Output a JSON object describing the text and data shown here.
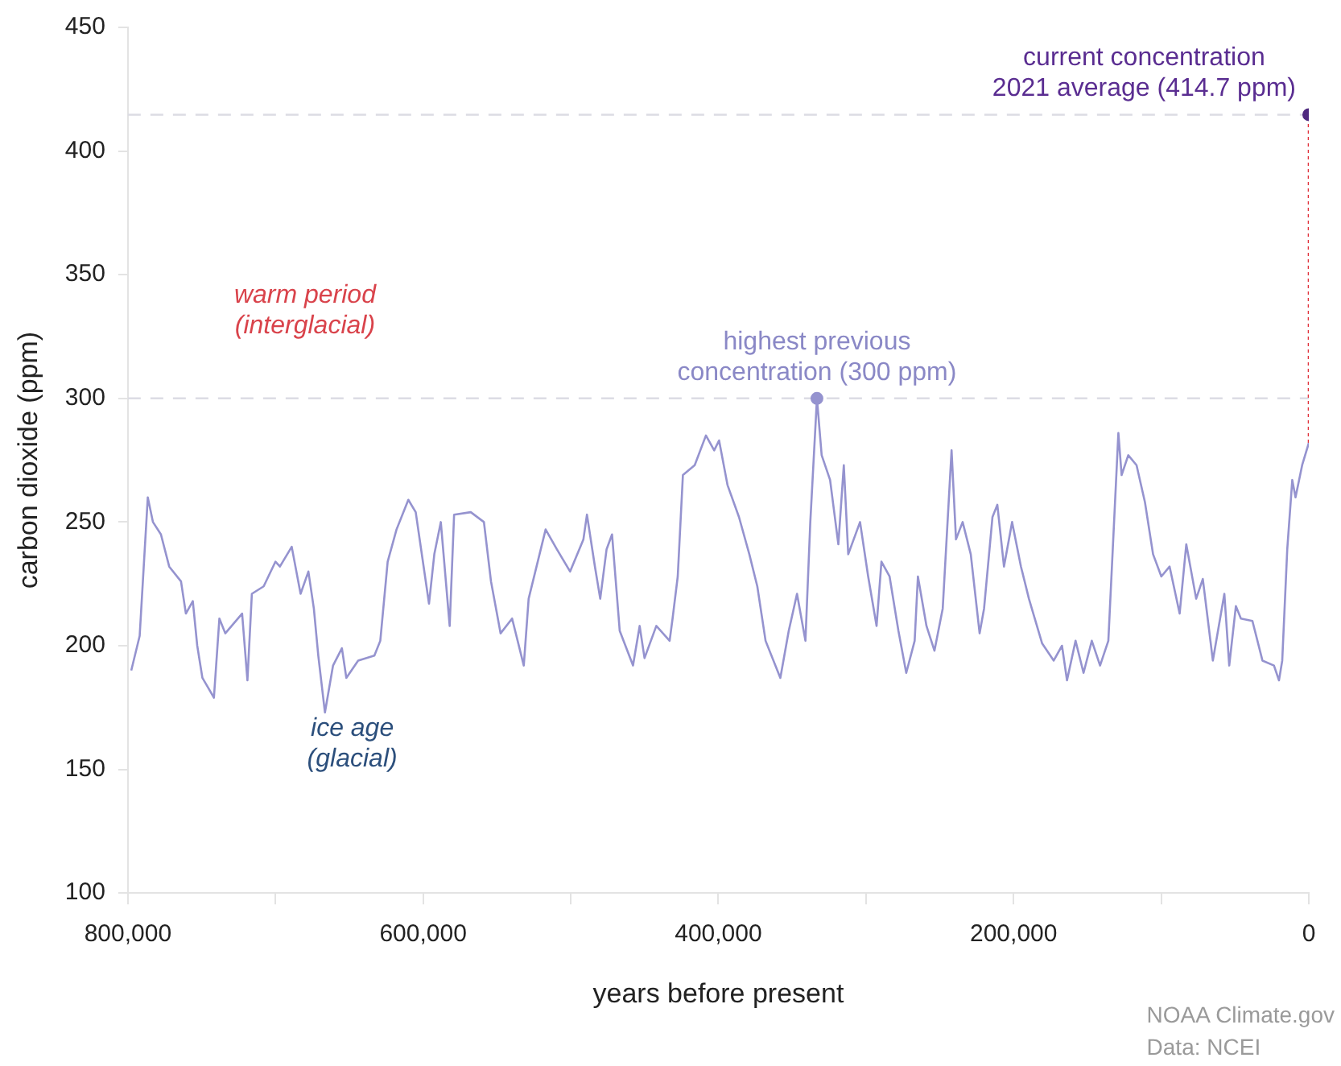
{
  "chart_data": {
    "type": "line",
    "xlabel": "years before present",
    "ylabel": "carbon dioxide (ppm)",
    "xlim": [
      800000,
      0
    ],
    "ylim": [
      100,
      450
    ],
    "xticks": [
      {
        "value": 800000,
        "label": "800,000"
      },
      {
        "value": 700000,
        "label": null
      },
      {
        "value": 600000,
        "label": "600,000"
      },
      {
        "value": 500000,
        "label": null
      },
      {
        "value": 400000,
        "label": "400,000"
      },
      {
        "value": 300000,
        "label": null
      },
      {
        "value": 200000,
        "label": "200,000"
      },
      {
        "value": 100000,
        "label": null
      },
      0
    ],
    "yticks": [
      100,
      150,
      200,
      250,
      300,
      350,
      400,
      450
    ],
    "grid": false,
    "legend": false,
    "ref_lines": [
      {
        "axis": "y",
        "value": 300,
        "color": "#dcdce4",
        "line_style": "dashed"
      },
      {
        "axis": "y",
        "value": 414.7,
        "color": "#dcdce4",
        "line_style": "dashed"
      }
    ],
    "series": [
      {
        "color": "#9593cf",
        "marker": "none",
        "line_style": "solid",
        "x": [
          797700,
          792000,
          786500,
          783000,
          777600,
          772000,
          764000,
          760700,
          756000,
          753000,
          749500,
          741700,
          738000,
          734000,
          722600,
          719000,
          716000,
          708000,
          700000,
          697000,
          689000,
          683000,
          677700,
          674000,
          671000,
          666500,
          661000,
          655000,
          652000,
          644000,
          633000,
          629000,
          624000,
          618000,
          610000,
          605000,
          596000,
          592400,
          588000,
          582000,
          579000,
          567700,
          558800,
          554000,
          547500,
          539700,
          531800,
          528500,
          517000,
          509400,
          500400,
          491400,
          489000,
          483600,
          480000,
          475700,
          472000,
          466800,
          457800,
          453300,
          450000,
          442000,
          433000,
          431000,
          427500,
          424000,
          416000,
          408400,
          402800,
          399500,
          393800,
          386000,
          379000,
          373600,
          368000,
          358000,
          352300,
          346700,
          341000,
          337700,
          333200,
          330000,
          324300,
          318700,
          315000,
          312000,
          304000,
          298500,
          292800,
          289500,
          284000,
          278000,
          272700,
          267000,
          264800,
          259000,
          253600,
          248000,
          242000,
          239000,
          234500,
          229000,
          223000,
          220000,
          214300,
          211000,
          206500,
          201000,
          195000,
          189600,
          180700,
          172800,
          167200,
          163800,
          158000,
          152600,
          147000,
          141400,
          135800,
          129000,
          126800,
          122300,
          116700,
          111000,
          105500,
          99900,
          94300,
          87500,
          83000,
          76300,
          71800,
          65000,
          57200,
          53900,
          49400,
          46000,
          38200,
          31400,
          23600,
          20200,
          18000,
          14600,
          11200,
          9000,
          4500,
          0
        ],
        "values": [
          190,
          204,
          260,
          250,
          245,
          232,
          226,
          213,
          218,
          200,
          187,
          179,
          211,
          205,
          213,
          186,
          221,
          224,
          234,
          232,
          240,
          221,
          230,
          215,
          196,
          173,
          192,
          199,
          187,
          194,
          196,
          202,
          234,
          247,
          259,
          254,
          217,
          237,
          250,
          208,
          253,
          254,
          250,
          226,
          205,
          211,
          192,
          219,
          247,
          239,
          230,
          243,
          253,
          232,
          219,
          239,
          245,
          206,
          192,
          208,
          195,
          208,
          202,
          211,
          228,
          269,
          273,
          285,
          279,
          283,
          265,
          252,
          237,
          224,
          202,
          187,
          206,
          221,
          202,
          250,
          300,
          277,
          267,
          241,
          273,
          237,
          250,
          228,
          208,
          234,
          228,
          206,
          189,
          202,
          228,
          208,
          198,
          215,
          279,
          243,
          250,
          237,
          205,
          215,
          252,
          257,
          232,
          250,
          232,
          219,
          201,
          194,
          200,
          186,
          202,
          189,
          202,
          192,
          202,
          286,
          269,
          277,
          273,
          258,
          237,
          228,
          232,
          213,
          241,
          219,
          227,
          194,
          221,
          192,
          216,
          211,
          210,
          194,
          192,
          186,
          194,
          239,
          267,
          260,
          273,
          282
        ]
      },
      {
        "type": "line",
        "color": "#e0303a",
        "marker": "none",
        "line_style": "dotted",
        "x": [
          0,
          0
        ],
        "values": [
          282,
          414.7
        ]
      },
      {
        "type": "scatter",
        "marker": "circle",
        "colors": [
          "#9593cf",
          "#4f2a7f"
        ],
        "x": [
          333200,
          0
        ],
        "values": [
          300,
          414.7
        ]
      }
    ],
    "annotations": [
      "warm period\n(interglacial)",
      "ice age\n(glacial)",
      {
        "text": "highest previous\nconcentration (300 ppm)",
        "x": 333200,
        "y": 300
      },
      {
        "text": "current concentration\n2021 average (414.7 ppm)",
        "x": 0,
        "y": 414.7
      },
      "NOAA Climate.gov",
      "Data: NCEI"
    ]
  }
}
